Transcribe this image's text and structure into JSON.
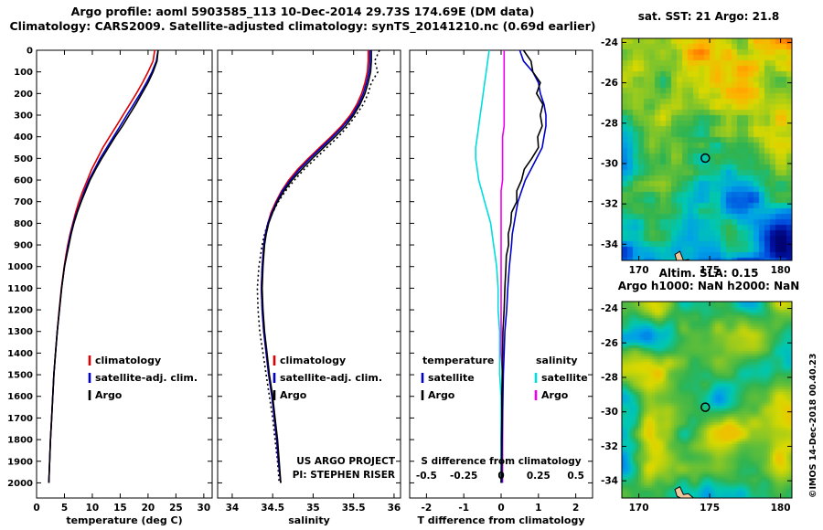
{
  "header": {
    "title": "Argo profile: aoml 5903585_113 10-Dec-2014 29.73S 174.69E (DM data)",
    "subtitle": "Climatology: CARS2009. Satellite-adjusted climatology: synTS_20141210.nc (0.69d earlier)"
  },
  "watermark": "©IMOS 14-Dec-2018 00.40.23",
  "colors": {
    "climatology": "#dd0000",
    "satellite": "#0000cc",
    "argo": "#000000",
    "sal_satellite": "#00dddd",
    "sal_argo": "#ee00ee",
    "land": "#f0c89e",
    "frame": "#000000"
  },
  "depth_levels_m": [
    0,
    50,
    100,
    150,
    200,
    250,
    300,
    350,
    400,
    450,
    500,
    550,
    600,
    650,
    700,
    750,
    800,
    850,
    900,
    950,
    1000,
    1100,
    1200,
    1300,
    1400,
    1500,
    1600,
    1700,
    1800,
    1900,
    2000
  ],
  "chart_data": [
    {
      "type": "line",
      "name": "temperature-profile",
      "xlabel": "temperature (deg C)",
      "xlim": [
        0,
        31.5
      ],
      "xticks": [
        0,
        5,
        10,
        15,
        20,
        25,
        30
      ],
      "ylim": [
        0,
        2070
      ],
      "yticks": [
        0,
        100,
        200,
        300,
        400,
        500,
        600,
        700,
        800,
        900,
        1000,
        1100,
        1200,
        1300,
        1400,
        1500,
        1600,
        1700,
        1800,
        1900,
        2000
      ],
      "ytick_labels": true,
      "series": [
        {
          "name": "climatology",
          "color": "#dd0000",
          "legend": true,
          "values": [
            21.2,
            20.9,
            20.0,
            19.0,
            17.9,
            16.7,
            15.5,
            14.3,
            13.1,
            11.9,
            10.9,
            9.9,
            9.1,
            8.3,
            7.6,
            7.0,
            6.5,
            6.0,
            5.6,
            5.25,
            4.95,
            4.45,
            4.05,
            3.7,
            3.4,
            3.1,
            2.9,
            2.7,
            2.5,
            2.35,
            2.2
          ]
        },
        {
          "name": "satellite-adj. clim.",
          "color": "#0000cc",
          "legend": true,
          "values": [
            21.8,
            21.5,
            20.7,
            19.7,
            18.6,
            17.4,
            16.2,
            15.0,
            13.8,
            12.6,
            11.4,
            10.4,
            9.4,
            8.6,
            7.9,
            7.2,
            6.6,
            6.1,
            5.7,
            5.35,
            5.0,
            4.5,
            4.1,
            3.7,
            3.4,
            3.1,
            2.9,
            2.7,
            2.5,
            2.35,
            2.2
          ]
        },
        {
          "name": "Argo",
          "color": "#000000",
          "legend": true,
          "values": [
            21.8,
            21.6,
            20.9,
            20.0,
            18.9,
            17.8,
            16.6,
            15.4,
            14.1,
            12.9,
            11.7,
            10.6,
            9.6,
            8.8,
            8.0,
            7.3,
            6.7,
            6.2,
            5.8,
            5.4,
            5.0,
            4.5,
            4.1,
            3.7,
            3.4,
            3.1,
            2.9,
            2.7,
            2.5,
            2.35,
            2.2
          ]
        }
      ]
    },
    {
      "type": "line",
      "name": "salinity-profile",
      "xlabel": "salinity",
      "xlim": [
        33.82,
        36.08
      ],
      "xticks": [
        34,
        34.5,
        35,
        35.5,
        36
      ],
      "ylim": [
        0,
        2070
      ],
      "yticks": [
        0,
        100,
        200,
        300,
        400,
        500,
        600,
        700,
        800,
        900,
        1000,
        1100,
        1200,
        1300,
        1400,
        1500,
        1600,
        1700,
        1800,
        1900,
        2000
      ],
      "ytick_labels": false,
      "notes": [
        "US ARGO PROJECT",
        "PI: STEPHEN RISER"
      ],
      "series": [
        {
          "name": "climatology (unadjusted, dotted)",
          "color": "#000000",
          "dash": true,
          "legend": false,
          "values": [
            35.82,
            35.76,
            35.8,
            35.72,
            35.68,
            35.62,
            35.53,
            35.43,
            35.31,
            35.17,
            35.03,
            34.89,
            34.77,
            34.66,
            34.57,
            34.5,
            34.44,
            34.4,
            34.37,
            34.35,
            34.33,
            34.31,
            34.32,
            34.34,
            34.38,
            34.42,
            34.46,
            34.5,
            34.53,
            34.56,
            34.58
          ]
        },
        {
          "name": "climatology",
          "color": "#dd0000",
          "legend": true,
          "values": [
            35.68,
            35.68,
            35.67,
            35.64,
            35.6,
            35.54,
            35.46,
            35.35,
            35.22,
            35.08,
            34.94,
            34.81,
            34.7,
            34.61,
            34.54,
            34.48,
            34.44,
            34.41,
            34.39,
            34.38,
            34.37,
            34.36,
            34.37,
            34.39,
            34.42,
            34.45,
            34.49,
            34.52,
            34.55,
            34.57,
            34.6
          ]
        },
        {
          "name": "satellite-adj. clim.",
          "color": "#0000cc",
          "legend": true,
          "values": [
            35.7,
            35.7,
            35.69,
            35.66,
            35.62,
            35.56,
            35.48,
            35.37,
            35.24,
            35.1,
            34.96,
            34.83,
            34.72,
            34.62,
            34.55,
            34.49,
            34.44,
            34.41,
            34.39,
            34.38,
            34.37,
            34.36,
            34.37,
            34.39,
            34.42,
            34.45,
            34.49,
            34.52,
            34.55,
            34.57,
            34.6
          ]
        },
        {
          "name": "Argo",
          "color": "#000000",
          "legend": true,
          "values": [
            35.72,
            35.72,
            35.71,
            35.68,
            35.64,
            35.58,
            35.5,
            35.4,
            35.27,
            35.13,
            34.99,
            34.86,
            34.74,
            34.64,
            34.56,
            34.5,
            34.45,
            34.42,
            34.4,
            34.39,
            34.38,
            34.37,
            34.38,
            34.4,
            34.43,
            34.46,
            34.5,
            34.53,
            34.56,
            34.58,
            34.6
          ]
        }
      ]
    },
    {
      "type": "line",
      "name": "difference-profile",
      "xlabel": "T difference from climatology",
      "xlim": [
        -2.45,
        2.45
      ],
      "xticks": [
        -2,
        -1,
        0,
        1,
        2
      ],
      "ylim": [
        0,
        2070
      ],
      "yticks": [
        0,
        100,
        200,
        300,
        400,
        500,
        600,
        700,
        800,
        900,
        1000,
        1100,
        1200,
        1300,
        1400,
        1500,
        1600,
        1700,
        1800,
        1900,
        2000
      ],
      "ytick_labels": false,
      "s_axis": {
        "label": "S difference from climatology",
        "ticks": [
          -0.5,
          -0.25,
          0,
          0.25,
          0.5
        ],
        "scale": 4
      },
      "legend_columns": [
        {
          "header": "temperature",
          "items": [
            {
              "label": "satellite",
              "color": "#0000cc"
            },
            {
              "label": "Argo",
              "color": "#000000"
            }
          ]
        },
        {
          "header": "salinity",
          "items": [
            {
              "label": "satellite",
              "color": "#00dddd"
            },
            {
              "label": "Argo",
              "color": "#ee00ee"
            }
          ]
        }
      ],
      "series": [
        {
          "name": "S satellite",
          "color": "#00dddd",
          "scale": 4,
          "legend": false,
          "values": [
            -0.08,
            -0.09,
            -0.1,
            -0.11,
            -0.12,
            -0.13,
            -0.14,
            -0.15,
            -0.16,
            -0.17,
            -0.17,
            -0.16,
            -0.15,
            -0.13,
            -0.11,
            -0.09,
            -0.07,
            -0.06,
            -0.05,
            -0.04,
            -0.03,
            -0.02,
            -0.02,
            -0.01,
            -0.01,
            -0.01,
            0,
            0,
            0,
            0,
            0
          ]
        },
        {
          "name": "S Argo",
          "color": "#ee00ee",
          "scale": 4,
          "legend": false,
          "values": [
            0.02,
            0.02,
            0.02,
            0.02,
            0.02,
            0.02,
            0.02,
            0.02,
            0.01,
            0.01,
            0.01,
            0.01,
            0.01,
            0,
            0,
            0,
            0,
            0,
            0,
            0,
            0,
            0,
            0,
            0,
            0,
            0.01,
            0.01,
            0.01,
            0.01,
            0.01,
            0.01
          ]
        },
        {
          "name": "T satellite",
          "color": "#0000cc",
          "scale": 1,
          "legend": false,
          "values": [
            0.5,
            0.6,
            0.85,
            1.0,
            1.05,
            1.15,
            1.2,
            1.2,
            1.15,
            1.1,
            0.95,
            0.8,
            0.65,
            0.55,
            0.45,
            0.4,
            0.35,
            0.3,
            0.28,
            0.25,
            0.22,
            0.18,
            0.15,
            0.1,
            0.08,
            0.06,
            0.05,
            0.04,
            0.03,
            0.02,
            0.02
          ]
        },
        {
          "name": "T Argo",
          "color": "#000000",
          "scale": 1,
          "legend": false,
          "values": [
            0.6,
            0.8,
            0.85,
            1.05,
            0.95,
            1.12,
            1.05,
            1.1,
            0.98,
            1.0,
            0.82,
            0.62,
            0.55,
            0.42,
            0.42,
            0.28,
            0.26,
            0.19,
            0.2,
            0.14,
            0.13,
            0.1,
            0.08,
            0.05,
            0.04,
            0.03,
            0.02,
            0.02,
            0.01,
            0.01,
            0
          ]
        }
      ]
    },
    {
      "type": "heatmap",
      "name": "sst-map",
      "title": "sat. SST: 21 Argo: 21.8",
      "xlim": [
        168.8,
        180.8
      ],
      "ylim": [
        -34.8,
        -23.8
      ],
      "xticks": [
        170,
        175,
        180
      ],
      "yticks": [
        -24,
        -26,
        -28,
        -30,
        -32,
        -34
      ],
      "marker": {
        "lon": 174.69,
        "lat": -29.73
      },
      "style": "pixelated satellite SST, warm (orange/yellow) north grading to cold (blue/navy) south, NZ coast at bottom"
    },
    {
      "type": "heatmap",
      "name": "sla-map",
      "title": "Altim. SLA: 0.15",
      "subtitle": "Argo h1000: NaN h2000: NaN",
      "xlim": [
        168.8,
        180.8
      ],
      "ylim": [
        -35.0,
        -23.6
      ],
      "xticks": [
        170,
        175,
        180
      ],
      "yticks": [
        -24,
        -26,
        -28,
        -30,
        -32,
        -34
      ],
      "marker": {
        "lon": 174.69,
        "lat": -29.73
      },
      "style": "smooth sea-level-anomaly field, green/yellow with cyan eddies, NZ coast at bottom"
    }
  ]
}
